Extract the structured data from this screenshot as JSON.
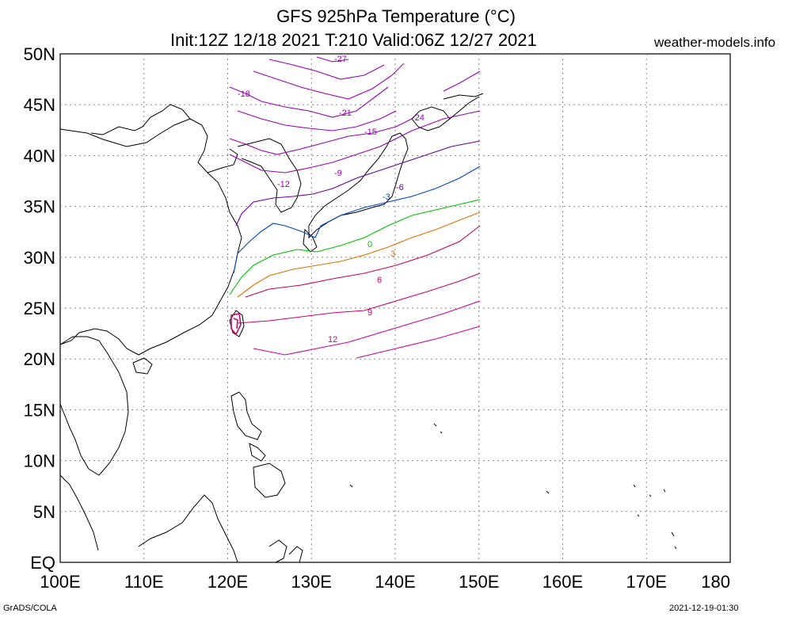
{
  "title": {
    "line1": "GFS 925hPa Temperature (°C)",
    "line2": "Init:12Z 12/18 2021 T:210 Valid:06Z 12/27 2021",
    "site": "weather-models.info"
  },
  "footer": {
    "left": "GrADS/COLA",
    "right": "2021-12-19-01:30"
  },
  "axes": {
    "lat_labels": [
      "EQ",
      "5N",
      "10N",
      "15N",
      "20N",
      "25N",
      "30N",
      "35N",
      "40N",
      "45N",
      "50N"
    ],
    "lon_labels": [
      "100E",
      "110E",
      "120E",
      "130E",
      "140E",
      "150E",
      "160E",
      "170E",
      "180"
    ],
    "lat_range": [
      0,
      50
    ],
    "lon_range": [
      100,
      180
    ],
    "grid": true
  },
  "contours": [
    {
      "label": "12",
      "color": "#cc0099"
    },
    {
      "label": "9",
      "color": "#cc0077"
    },
    {
      "label": "6",
      "color": "#cc0055"
    },
    {
      "label": "3",
      "color": "#e07000"
    },
    {
      "label": "0",
      "color": "#00c000"
    },
    {
      "label": "-3",
      "color": "#0044cc"
    },
    {
      "label": "-6",
      "color": "#6600aa"
    },
    {
      "label": "-9",
      "color": "#9900bb"
    },
    {
      "label": "-12",
      "color": "#9900bb"
    },
    {
      "label": "-15",
      "color": "#9900bb"
    },
    {
      "label": "-18",
      "color": "#9900bb"
    },
    {
      "label": "-21",
      "color": "#9900bb"
    },
    {
      "label": "-24",
      "color": "#9900bb"
    },
    {
      "label": "-27",
      "color": "#9900bb"
    }
  ]
}
